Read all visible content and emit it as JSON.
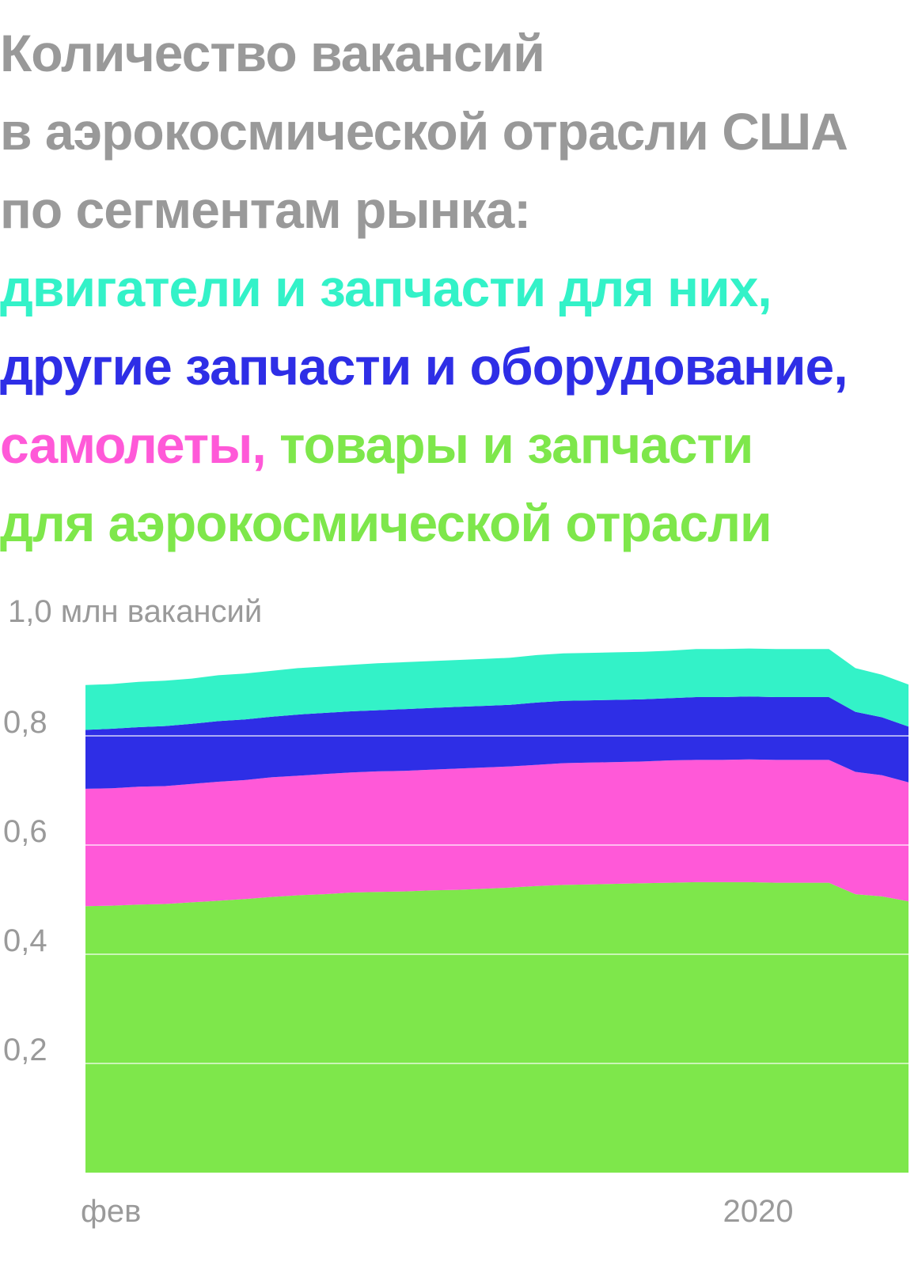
{
  "title": {
    "line1": "Количество вакансий",
    "line2": "в аэрокосмической отрасли США",
    "line3": "по сегментам рынка:",
    "series_line1": "двигатели и запчасти для них,",
    "series_line2": "другие запчасти и оборудование,",
    "series_line3a": "самолеты,",
    "series_line3b": " товары и запчасти",
    "series_line4": "для аэрокосмической отрасли"
  },
  "colors": {
    "title": "#999999",
    "engines": "#33f2c8",
    "other_parts": "#2e2ee6",
    "aircraft": "#ff59d8",
    "aerospace_products": "#7ee74b",
    "grid": "#ffffff",
    "axis_text": "#9a9a9a"
  },
  "chart_data": {
    "type": "area",
    "stacked": true,
    "x_labels": [
      "фев",
      "2020"
    ],
    "ylabel": "1,0 млн вакансий",
    "y_ticks": [
      "0,2",
      "0,4",
      "0,6",
      "0,8"
    ],
    "ylim": [
      0,
      1.0
    ],
    "grid": true,
    "series": [
      {
        "name": "товары и запчасти для аэрокосмической отрасли",
        "color_key": "aerospace_products",
        "values": [
          0.488,
          0.489,
          0.491,
          0.492,
          0.495,
          0.498,
          0.501,
          0.505,
          0.508,
          0.51,
          0.513,
          0.514,
          0.515,
          0.517,
          0.518,
          0.52,
          0.522,
          0.525,
          0.527,
          0.528,
          0.529,
          0.53,
          0.531,
          0.532,
          0.532,
          0.532,
          0.531,
          0.531,
          0.531,
          0.51,
          0.506,
          0.497
        ]
      },
      {
        "name": "самолеты",
        "color_key": "aircraft",
        "values": [
          0.215,
          0.215,
          0.216,
          0.216,
          0.217,
          0.218,
          0.218,
          0.219,
          0.219,
          0.22,
          0.22,
          0.221,
          0.221,
          0.221,
          0.222,
          0.222,
          0.222,
          0.222,
          0.223,
          0.223,
          0.223,
          0.223,
          0.224,
          0.224,
          0.224,
          0.225,
          0.225,
          0.225,
          0.225,
          0.224,
          0.222,
          0.218
        ]
      },
      {
        "name": "другие запчасти и оборудование",
        "color_key": "other_parts",
        "values": [
          0.108,
          0.109,
          0.109,
          0.11,
          0.11,
          0.111,
          0.111,
          0.111,
          0.112,
          0.112,
          0.112,
          0.112,
          0.113,
          0.113,
          0.113,
          0.113,
          0.113,
          0.114,
          0.114,
          0.114,
          0.114,
          0.114,
          0.114,
          0.115,
          0.115,
          0.115,
          0.115,
          0.115,
          0.115,
          0.11,
          0.106,
          0.102
        ]
      },
      {
        "name": "двигатели и запчасти для них",
        "color_key": "engines",
        "values": [
          0.082,
          0.082,
          0.083,
          0.083,
          0.083,
          0.084,
          0.084,
          0.084,
          0.085,
          0.085,
          0.085,
          0.086,
          0.086,
          0.086,
          0.086,
          0.086,
          0.086,
          0.087,
          0.087,
          0.087,
          0.087,
          0.087,
          0.087,
          0.088,
          0.088,
          0.088,
          0.088,
          0.088,
          0.088,
          0.08,
          0.078,
          0.077
        ]
      }
    ]
  }
}
